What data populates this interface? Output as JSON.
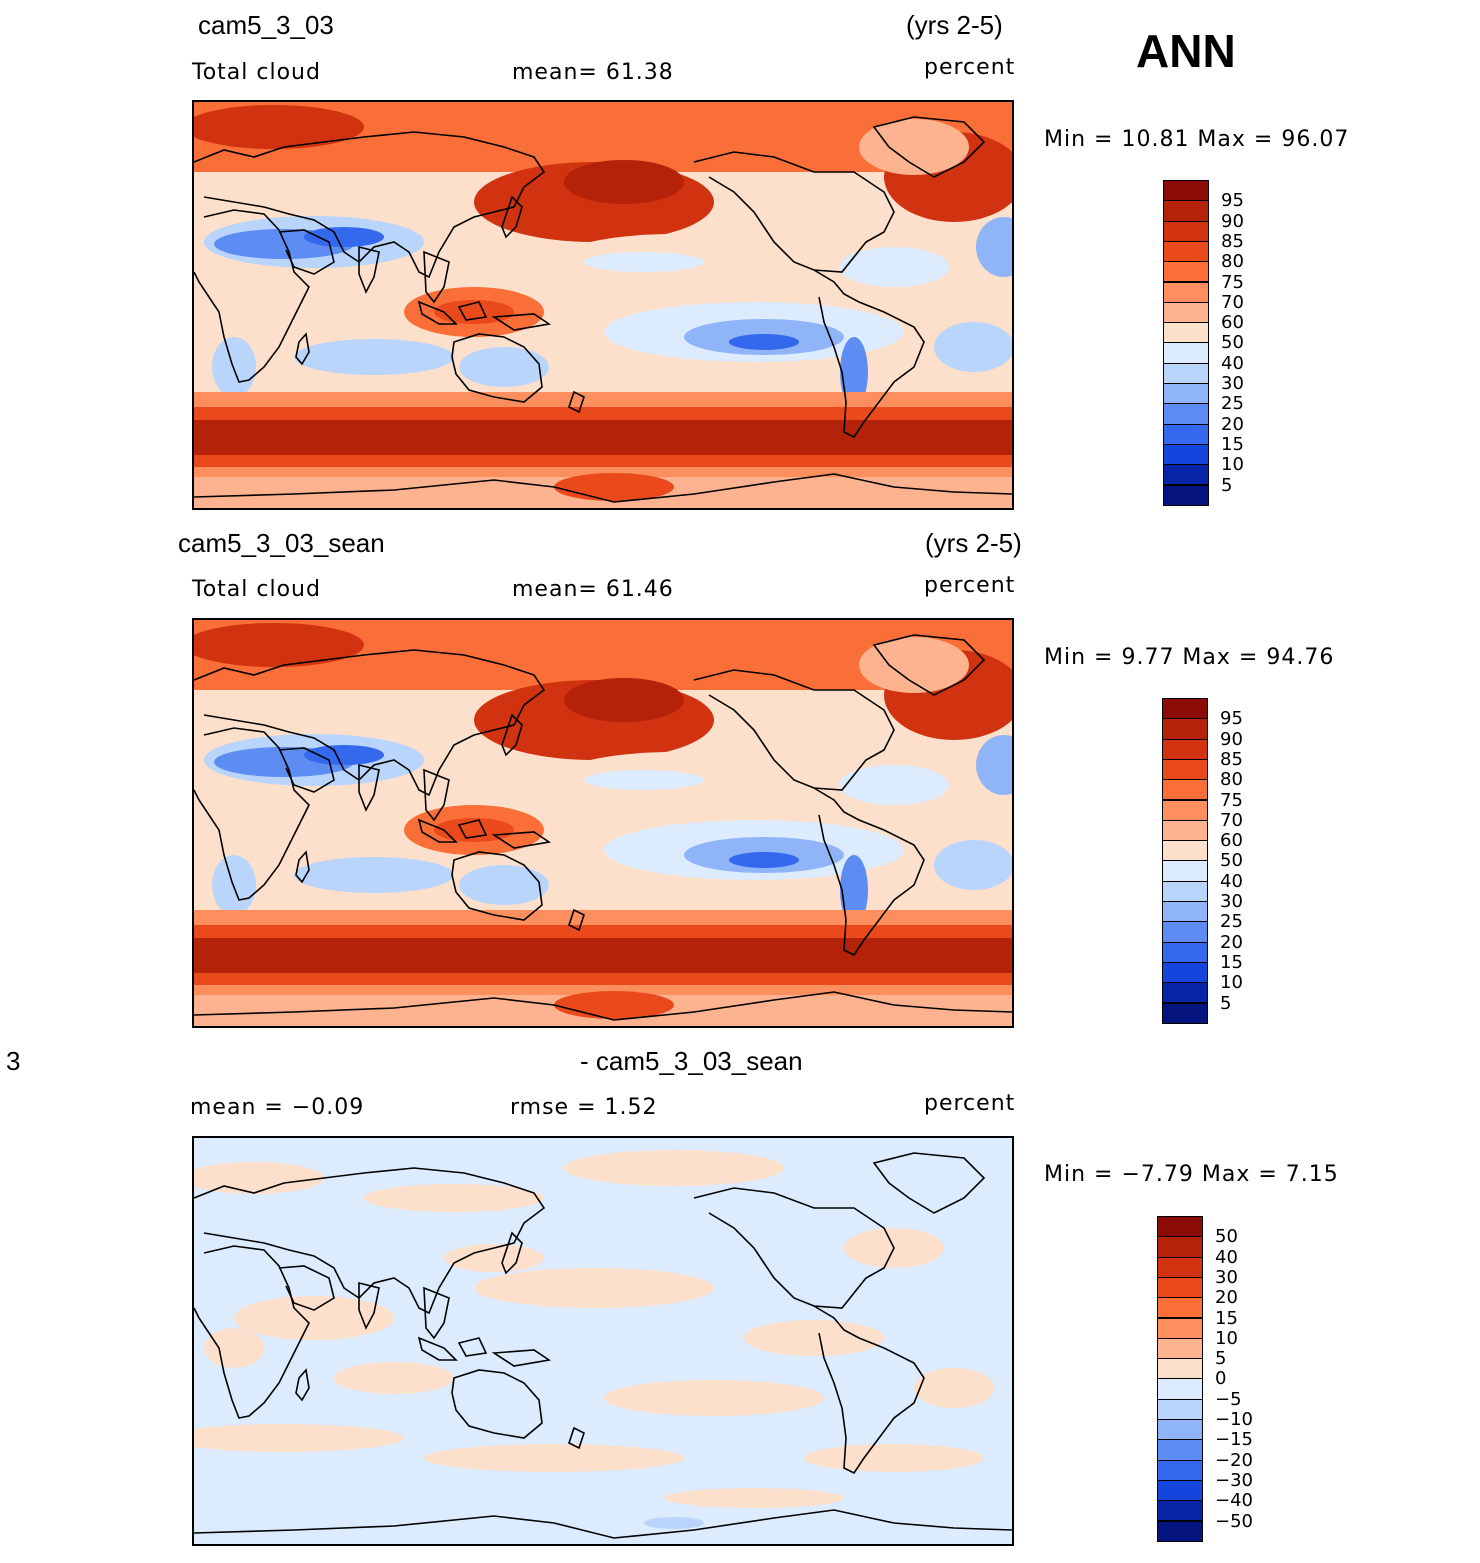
{
  "season": "ANN",
  "panels": [
    {
      "case": "cam5_3_03",
      "years": "(yrs 2-5)",
      "variable": "Total cloud",
      "stat1": "mean=   61.38",
      "stat2": "",
      "units": "percent",
      "minmax": "Min =   10.81  Max =   96.07",
      "min": 10.81,
      "max": 96.07,
      "mean": 61.38
    },
    {
      "case": "cam5_3_03_sean",
      "years": "(yrs 2-5)",
      "variable": "Total cloud",
      "stat1": "mean=   61.46",
      "stat2": "",
      "units": "percent",
      "minmax": "Min =    9.77  Max =   94.76",
      "min": 9.77,
      "max": 94.76,
      "mean": 61.46
    },
    {
      "case": "- cam5_3_03_sean",
      "case_prefix": "3",
      "years": "",
      "variable": "mean =   −0.09",
      "stat1": "rmse =    1.52",
      "units": "percent",
      "minmax": "Min =  −7.79  Max =    7.15",
      "min": -7.79,
      "max": 7.15,
      "mean": -0.09,
      "rmse": 1.52
    }
  ],
  "colorbars": {
    "abs": {
      "labels": [
        "95",
        "90",
        "85",
        "80",
        "75",
        "70",
        "60",
        "50",
        "40",
        "30",
        "25",
        "20",
        "15",
        "10",
        "5"
      ],
      "colors": [
        "#8b0b06",
        "#b32209",
        "#d13210",
        "#ea4a1b",
        "#fa6e37",
        "#fc8f5d",
        "#fdb38f",
        "#fde0cc",
        "#dcebfd",
        "#b9d5fb",
        "#8fb4f8",
        "#5d8df3",
        "#3469ee",
        "#1446dd",
        "#0825a8",
        "#061480"
      ]
    },
    "diff": {
      "labels": [
        "50",
        "40",
        "30",
        "20",
        "15",
        "10",
        "5",
        "0",
        "−5",
        "−10",
        "−15",
        "−20",
        "−30",
        "−40",
        "−50"
      ],
      "colors": [
        "#8b0b06",
        "#b32209",
        "#d13210",
        "#ea4a1b",
        "#fa6e37",
        "#fc8f5d",
        "#fdb38f",
        "#fde0cc",
        "#dcebfd",
        "#b9d5fb",
        "#8fb4f8",
        "#5d8df3",
        "#3469ee",
        "#1446dd",
        "#0825a8",
        "#061480"
      ]
    }
  }
}
